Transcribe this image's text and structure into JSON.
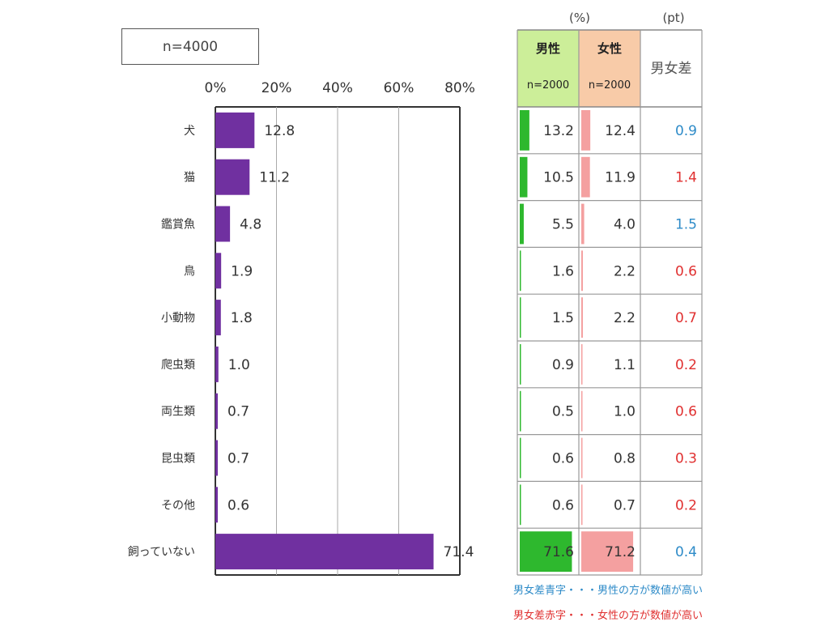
{
  "sample_label": "n=4000",
  "units": {
    "percent": "(%)",
    "points": "(pt)"
  },
  "table_headers": {
    "male": "男性",
    "female": "女性",
    "male_n": "n=2000",
    "female_n": "n=2000",
    "diff": "男女差"
  },
  "legend_notes": {
    "blue": "男女差青字・・・男性の方が数値が高い",
    "red": "男女差赤字・・・女性の方が数値が高い"
  },
  "colors": {
    "bar": "#7030a0",
    "male_bar": "#2eb82e",
    "female_bar": "#f4a0a0",
    "male_header_bg": "#ccee99",
    "female_header_bg": "#f8cba8",
    "diff_blue": "#2e8bc8",
    "diff_red": "#e03030"
  },
  "chart_data": {
    "type": "bar",
    "orientation": "horizontal",
    "categories": [
      "犬",
      "猫",
      "鑑賞魚",
      "鳥",
      "小動物",
      "爬虫類",
      "両生類",
      "昆虫類",
      "その他",
      "飼っていない"
    ],
    "values": [
      12.8,
      11.2,
      4.8,
      1.9,
      1.8,
      1.0,
      0.7,
      0.7,
      0.6,
      71.4
    ],
    "value_labels": [
      "12.8",
      "11.2",
      "4.8",
      "1.9",
      "1.8",
      "1.0",
      "0.7",
      "0.7",
      "0.6",
      "71.4"
    ],
    "x_ticks": [
      "0%",
      "20%",
      "40%",
      "60%",
      "80%"
    ],
    "xlim": [
      0,
      80
    ],
    "grid": true
  },
  "table": {
    "male": [
      "13.2",
      "10.5",
      "5.5",
      "1.6",
      "1.5",
      "0.9",
      "0.5",
      "0.6",
      "0.6",
      "71.6"
    ],
    "female": [
      "12.4",
      "11.9",
      "4.0",
      "2.2",
      "2.2",
      "1.1",
      "1.0",
      "0.8",
      "0.7",
      "71.2"
    ],
    "diff": [
      "0.9",
      "1.4",
      "1.5",
      "0.6",
      "0.7",
      "0.2",
      "0.6",
      "0.3",
      "0.2",
      "0.4"
    ],
    "diff_color": [
      "blue",
      "red",
      "blue",
      "red",
      "red",
      "red",
      "red",
      "red",
      "red",
      "blue"
    ]
  }
}
